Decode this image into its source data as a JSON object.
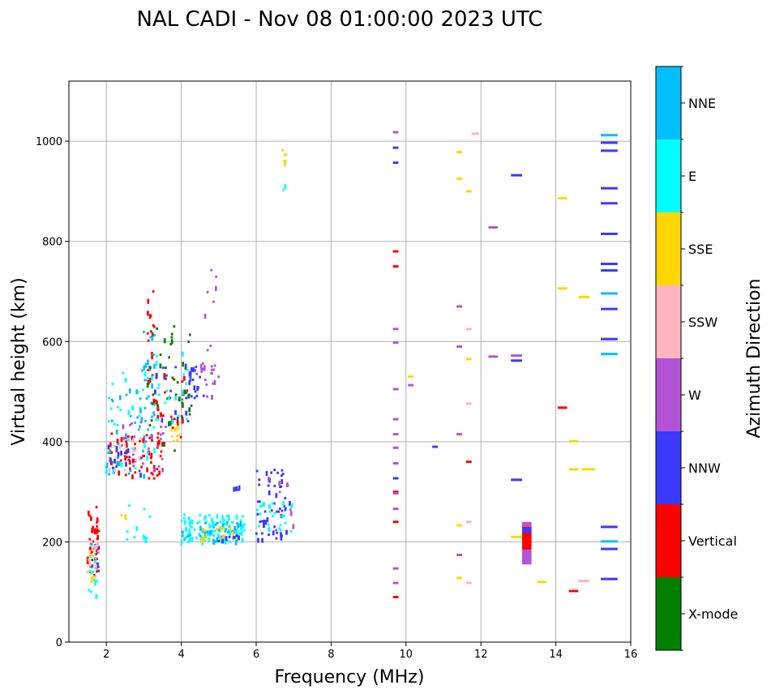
{
  "chart_data": {
    "type": "scatter",
    "title": "NAL CADI - Nov 08 01:00:00 2023 UTC",
    "xlabel": "Frequency (MHz)",
    "ylabel": "Virtual height (km)",
    "xlim": [
      1,
      16
    ],
    "ylim": [
      0,
      1120
    ],
    "xticks": [
      2,
      4,
      6,
      8,
      10,
      12,
      14,
      16
    ],
    "yticks": [
      0,
      200,
      400,
      600,
      800,
      1000
    ],
    "grid": true,
    "colorbar": {
      "title": "Azimuth Direction",
      "categories": [
        {
          "name": "X-mode",
          "color": "#008000"
        },
        {
          "name": "Vertical",
          "color": "#ff0000"
        },
        {
          "name": "NNW",
          "color": "#3a3aff"
        },
        {
          "name": "W",
          "color": "#b354d6"
        },
        {
          "name": "SSW",
          "color": "#ffb6c1"
        },
        {
          "name": "SSE",
          "color": "#ffd700"
        },
        {
          "name": "E",
          "color": "#00ffff"
        },
        {
          "name": "NNE",
          "color": "#00bfff"
        }
      ]
    },
    "clusters": [
      {
        "category": "Vertical",
        "f": [
          1.5,
          1.8
        ],
        "h": [
          120,
          270
        ],
        "n": 40
      },
      {
        "category": "SSE",
        "f": [
          1.5,
          1.8
        ],
        "h": [
          120,
          200
        ],
        "n": 14
      },
      {
        "category": "E",
        "f": [
          1.5,
          1.8
        ],
        "h": [
          90,
          200
        ],
        "n": 16
      },
      {
        "category": "NNW",
        "f": [
          1.5,
          1.8
        ],
        "h": [
          140,
          200
        ],
        "n": 8
      },
      {
        "category": "SSW",
        "f": [
          1.5,
          1.8
        ],
        "h": [
          150,
          210
        ],
        "n": 8
      },
      {
        "category": "NNE",
        "f": [
          2.0,
          3.3
        ],
        "h": [
          330,
          520
        ],
        "n": 45
      },
      {
        "category": "Vertical",
        "f": [
          2.1,
          3.5
        ],
        "h": [
          325,
          420
        ],
        "n": 60
      },
      {
        "category": "W",
        "f": [
          2.3,
          3.6
        ],
        "h": [
          340,
          440
        ],
        "n": 30
      },
      {
        "category": "SSW",
        "f": [
          2.0,
          3.0
        ],
        "h": [
          340,
          420
        ],
        "n": 15
      },
      {
        "category": "NNW",
        "f": [
          2.0,
          3.0
        ],
        "h": [
          330,
          400
        ],
        "n": 15
      },
      {
        "category": "E",
        "f": [
          2.0,
          3.5
        ],
        "h": [
          340,
          560
        ],
        "n": 30
      },
      {
        "category": "Vertical",
        "f": [
          3.1,
          3.3
        ],
        "h": [
          480,
          710
        ],
        "n": 18
      },
      {
        "category": "NNE",
        "f": [
          2.9,
          3.3
        ],
        "h": [
          440,
          620
        ],
        "n": 20
      },
      {
        "category": "X-mode",
        "f": [
          3.1,
          4.3
        ],
        "h": [
          380,
          640
        ],
        "n": 45
      },
      {
        "category": "Vertical",
        "f": [
          3.3,
          4.2
        ],
        "h": [
          390,
          540
        ],
        "n": 25
      },
      {
        "category": "SSE",
        "f": [
          3.7,
          4.0
        ],
        "h": [
          400,
          440
        ],
        "n": 8
      },
      {
        "category": "NNW",
        "f": [
          3.3,
          4.3
        ],
        "h": [
          440,
          560
        ],
        "n": 20
      },
      {
        "category": "E",
        "f": [
          3.2,
          4.2
        ],
        "h": [
          440,
          580
        ],
        "n": 20
      },
      {
        "category": "NNW",
        "f": [
          4.2,
          4.6
        ],
        "h": [
          480,
          550
        ],
        "n": 18
      },
      {
        "category": "W",
        "f": [
          4.4,
          5.0
        ],
        "h": [
          490,
          560
        ],
        "n": 20
      },
      {
        "category": "W",
        "f": [
          4.6,
          5.0
        ],
        "h": [
          580,
          745
        ],
        "n": 8
      },
      {
        "category": "E",
        "f": [
          4.0,
          5.7
        ],
        "h": [
          200,
          255
        ],
        "n": 110
      },
      {
        "category": "NNE",
        "f": [
          4.0,
          5.7
        ],
        "h": [
          200,
          240
        ],
        "n": 40
      },
      {
        "category": "SSE",
        "f": [
          4.5,
          5.5
        ],
        "h": [
          200,
          230
        ],
        "n": 15
      },
      {
        "category": "NNW",
        "f": [
          5.0,
          5.6
        ],
        "h": [
          200,
          215
        ],
        "n": 10
      },
      {
        "category": "NNW",
        "f": [
          5.3,
          5.6
        ],
        "h": [
          300,
          312
        ],
        "n": 5
      },
      {
        "category": "NNW",
        "f": [
          6.0,
          6.9
        ],
        "h": [
          205,
          345
        ],
        "n": 55
      },
      {
        "category": "E",
        "f": [
          6.0,
          7.0
        ],
        "h": [
          220,
          280
        ],
        "n": 25
      },
      {
        "category": "W",
        "f": [
          6.3,
          7.0
        ],
        "h": [
          220,
          340
        ],
        "n": 10
      },
      {
        "category": "E",
        "f": [
          2.5,
          3.2
        ],
        "h": [
          200,
          275
        ],
        "n": 12
      },
      {
        "category": "SSE",
        "f": [
          2.3,
          2.6
        ],
        "h": [
          240,
          255
        ],
        "n": 4
      },
      {
        "category": "SSE",
        "f": [
          6.7,
          6.8
        ],
        "h": [
          950,
          990
        ],
        "n": 6
      },
      {
        "category": "E",
        "f": [
          6.7,
          6.8
        ],
        "h": [
          900,
          912
        ],
        "n": 2
      }
    ],
    "segments": [
      {
        "category": "W",
        "f": [
          9.65,
          9.8
        ],
        "h": 1018
      },
      {
        "category": "NNW",
        "f": [
          9.65,
          9.8
        ],
        "h": 987
      },
      {
        "category": "NNW",
        "f": [
          9.65,
          9.8
        ],
        "h": 957
      },
      {
        "category": "Vertical",
        "f": [
          9.65,
          9.8
        ],
        "h": 780
      },
      {
        "category": "Vertical",
        "f": [
          9.65,
          9.8
        ],
        "h": 750
      },
      {
        "category": "W",
        "f": [
          9.65,
          9.8
        ],
        "h": 625
      },
      {
        "category": "W",
        "f": [
          9.65,
          9.8
        ],
        "h": 598
      },
      {
        "category": "W",
        "f": [
          9.65,
          9.8
        ],
        "h": 505
      },
      {
        "category": "W",
        "f": [
          9.65,
          9.8
        ],
        "h": 445
      },
      {
        "category": "W",
        "f": [
          9.65,
          9.8
        ],
        "h": 415
      },
      {
        "category": "W",
        "f": [
          9.65,
          9.8
        ],
        "h": 388
      },
      {
        "category": "W",
        "f": [
          9.65,
          9.8
        ],
        "h": 357
      },
      {
        "category": "NNW",
        "f": [
          9.65,
          9.8
        ],
        "h": 327
      },
      {
        "category": "Vertical",
        "f": [
          9.65,
          9.8
        ],
        "h": 300
      },
      {
        "category": "W",
        "f": [
          9.65,
          9.8
        ],
        "h": 297
      },
      {
        "category": "W",
        "f": [
          9.65,
          9.8
        ],
        "h": 266
      },
      {
        "category": "Vertical",
        "f": [
          9.65,
          9.8
        ],
        "h": 240
      },
      {
        "category": "W",
        "f": [
          9.65,
          9.8
        ],
        "h": 147
      },
      {
        "category": "W",
        "f": [
          9.65,
          9.8
        ],
        "h": 118
      },
      {
        "category": "Vertical",
        "f": [
          9.65,
          9.8
        ],
        "h": 90
      },
      {
        "category": "SSE",
        "f": [
          10.05,
          10.2
        ],
        "h": 530
      },
      {
        "category": "W",
        "f": [
          10.05,
          10.2
        ],
        "h": 513
      },
      {
        "category": "NNW",
        "f": [
          10.7,
          10.85
        ],
        "h": 390
      },
      {
        "category": "SSE",
        "f": [
          11.35,
          11.5
        ],
        "h": 978
      },
      {
        "category": "SSE",
        "f": [
          11.35,
          11.5
        ],
        "h": 925
      },
      {
        "category": "W",
        "f": [
          11.35,
          11.5
        ],
        "h": 670
      },
      {
        "category": "W",
        "f": [
          11.35,
          11.5
        ],
        "h": 590
      },
      {
        "category": "W",
        "f": [
          11.35,
          11.5
        ],
        "h": 415
      },
      {
        "category": "SSE",
        "f": [
          11.35,
          11.5
        ],
        "h": 233
      },
      {
        "category": "W",
        "f": [
          11.35,
          11.5
        ],
        "h": 174
      },
      {
        "category": "SSE",
        "f": [
          11.35,
          11.5
        ],
        "h": 128
      },
      {
        "category": "SSE",
        "f": [
          11.6,
          11.75
        ],
        "h": 900
      },
      {
        "category": "SSW",
        "f": [
          11.6,
          11.75
        ],
        "h": 625
      },
      {
        "category": "SSE",
        "f": [
          11.6,
          11.75
        ],
        "h": 565
      },
      {
        "category": "SSW",
        "f": [
          11.6,
          11.75
        ],
        "h": 476
      },
      {
        "category": "Vertical",
        "f": [
          11.6,
          11.75
        ],
        "h": 360
      },
      {
        "category": "SSW",
        "f": [
          11.6,
          11.75
        ],
        "h": 240
      },
      {
        "category": "SSW",
        "f": [
          11.6,
          11.75
        ],
        "h": 118
      },
      {
        "category": "SSW",
        "f": [
          11.75,
          11.95
        ],
        "h": 1015
      },
      {
        "category": "W",
        "f": [
          12.2,
          12.45
        ],
        "h": 828
      },
      {
        "category": "W",
        "f": [
          12.2,
          12.45
        ],
        "h": 570
      },
      {
        "category": "NNW",
        "f": [
          12.8,
          13.1
        ],
        "h": 932
      },
      {
        "category": "W",
        "f": [
          12.8,
          13.1
        ],
        "h": 572
      },
      {
        "category": "NNW",
        "f": [
          12.8,
          13.1
        ],
        "h": 562
      },
      {
        "category": "NNW",
        "f": [
          12.8,
          13.1
        ],
        "h": 324
      },
      {
        "category": "SSE",
        "f": [
          12.8,
          13.1
        ],
        "h": 210
      },
      {
        "category": "SSE",
        "f": [
          13.5,
          13.75
        ],
        "h": 120
      },
      {
        "category": "SSE",
        "f": [
          14.05,
          14.3
        ],
        "h": 886
      },
      {
        "category": "SSE",
        "f": [
          14.05,
          14.3
        ],
        "h": 706
      },
      {
        "category": "Vertical",
        "f": [
          14.05,
          14.3
        ],
        "h": 468
      },
      {
        "category": "SSE",
        "f": [
          14.35,
          14.6
        ],
        "h": 401
      },
      {
        "category": "Vertical",
        "f": [
          14.35,
          14.6
        ],
        "h": 102
      },
      {
        "category": "SSE",
        "f": [
          14.6,
          14.9
        ],
        "h": 689
      },
      {
        "category": "SSW",
        "f": [
          14.6,
          14.9
        ],
        "h": 122
      },
      {
        "category": "SSE",
        "f": [
          14.35,
          14.6
        ],
        "h": 345
      },
      {
        "category": "SSE",
        "f": [
          14.7,
          15.05
        ],
        "h": 345
      },
      {
        "category": "NNE",
        "f": [
          15.2,
          15.65
        ],
        "h": 1012
      },
      {
        "category": "NNW",
        "f": [
          15.2,
          15.65
        ],
        "h": 997
      },
      {
        "category": "NNW",
        "f": [
          15.2,
          15.65
        ],
        "h": 981
      },
      {
        "category": "NNW",
        "f": [
          15.2,
          15.65
        ],
        "h": 906
      },
      {
        "category": "NNW",
        "f": [
          15.2,
          15.65
        ],
        "h": 876
      },
      {
        "category": "NNW",
        "f": [
          15.2,
          15.65
        ],
        "h": 815
      },
      {
        "category": "NNW",
        "f": [
          15.2,
          15.65
        ],
        "h": 755
      },
      {
        "category": "NNW",
        "f": [
          15.2,
          15.65
        ],
        "h": 742
      },
      {
        "category": "NNE",
        "f": [
          15.2,
          15.65
        ],
        "h": 696
      },
      {
        "category": "NNW",
        "f": [
          15.2,
          15.65
        ],
        "h": 665
      },
      {
        "category": "NNW",
        "f": [
          15.2,
          15.65
        ],
        "h": 605
      },
      {
        "category": "NNE",
        "f": [
          15.2,
          15.65
        ],
        "h": 575
      },
      {
        "category": "NNW",
        "f": [
          15.2,
          15.65
        ],
        "h": 230
      },
      {
        "category": "NNE",
        "f": [
          15.2,
          15.65
        ],
        "h": 201
      },
      {
        "category": "NNW",
        "f": [
          15.2,
          15.65
        ],
        "h": 186
      },
      {
        "category": "NNW",
        "f": [
          15.2,
          15.65
        ],
        "h": 126
      }
    ],
    "blocks": [
      {
        "category": "W",
        "f": [
          13.1,
          13.35
        ],
        "h": [
          155,
          240
        ]
      },
      {
        "category": "Vertical",
        "f": [
          13.1,
          13.35
        ],
        "h": [
          185,
          230
        ]
      },
      {
        "category": "NNW",
        "f": [
          13.1,
          13.35
        ],
        "h": [
          218,
          228
        ]
      }
    ]
  }
}
